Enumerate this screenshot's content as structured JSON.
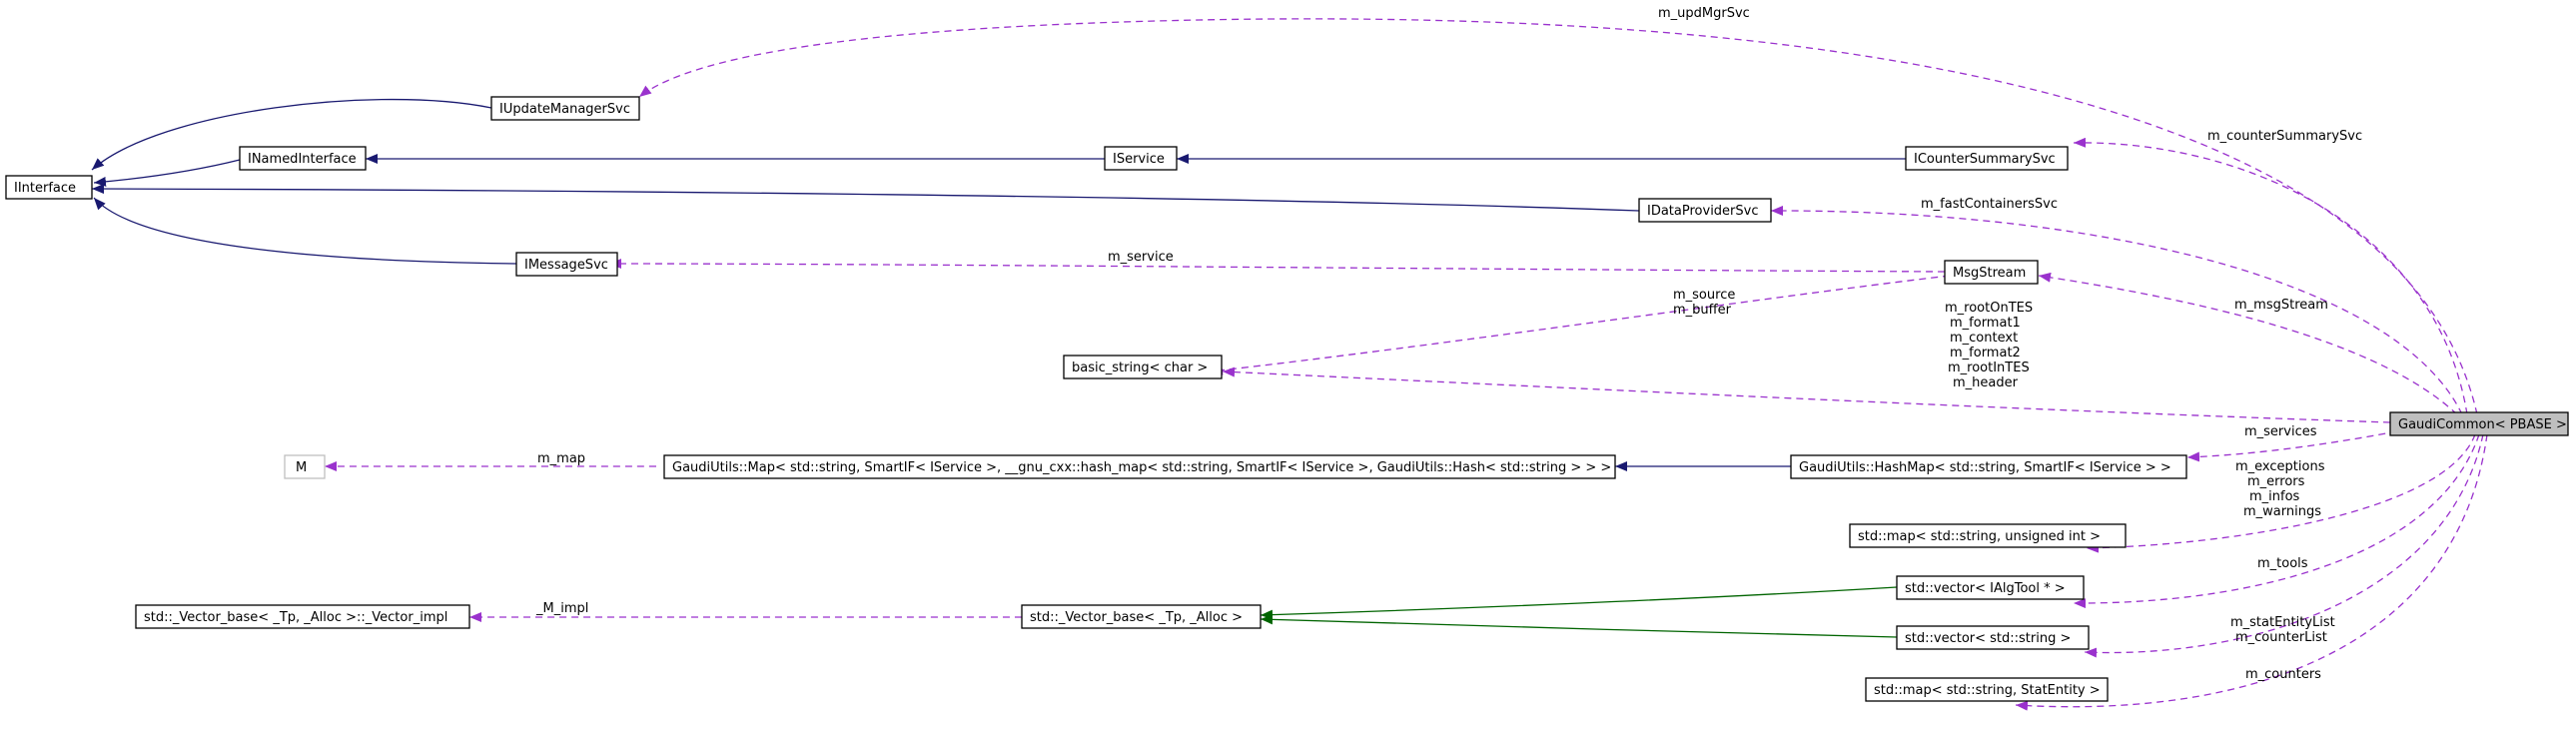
{
  "nodes": {
    "iinterface": "IInterface",
    "iupdatemanagersvc": "IUpdateManagerSvc",
    "inamedinterface": "INamedInterface",
    "iservice": "IService",
    "icountersummarysvc": "ICounterSummarySvc",
    "idataprovidersvc": "IDataProviderSvc",
    "imessagesvc": "IMessageSvc",
    "msgstream": "MsgStream",
    "basic_string": "basic_string< char >",
    "gaudicommon": "GaudiCommon< PBASE >",
    "m": "M",
    "gaudiutils_map": "GaudiUtils::Map< std::string, SmartIF< IService >, __gnu_cxx::hash_map< std::string, SmartIF< IService >, GaudiUtils::Hash< std::string > > >",
    "gaudiutils_hashmap": "GaudiUtils::HashMap< std::string, SmartIF< IService > >",
    "std_map_uint": "std::map< std::string, unsigned int >",
    "vector_base_impl": "std::_Vector_base< _Tp, _Alloc >::_Vector_impl",
    "vector_base": "std::_Vector_base< _Tp, _Alloc >",
    "vector_ialgtool": "std::vector< IAlgTool * >",
    "vector_string": "std::vector< std::string >",
    "map_statentity": "std::map< std::string, StatEntity >"
  },
  "edge_labels": {
    "m_updMgrSvc": "m_updMgrSvc",
    "m_counterSummarySvc": "m_counterSummarySvc",
    "m_fastContainersSvc": "m_fastContainersSvc",
    "m_service": "m_service",
    "m_msgStream": "m_msgStream",
    "m_source": "m_source",
    "m_buffer": "m_buffer",
    "m_rootOnTES": "m_rootOnTES",
    "m_format1": "m_format1",
    "m_context": "m_context",
    "m_format2": "m_format2",
    "m_rootInTES": "m_rootInTES",
    "m_header": "m_header",
    "m_services": "m_services",
    "m_map": "m_map",
    "m_exceptions": "m_exceptions",
    "m_errors": "m_errors",
    "m_infos": "m_infos",
    "m_warnings": "m_warnings",
    "m_tools": "m_tools",
    "_M_impl": "_M_impl",
    "m_statEntityList": "m_statEntityList",
    "m_counterList": "m_counterList",
    "m_counters": "m_counters"
  },
  "colors": {
    "inheritance": "#191970",
    "inheritance_template": "#006400",
    "usage": "#9a32cd",
    "highlight_fill": "#bfbfbf",
    "missing_node_border": "#bfbfbf"
  }
}
